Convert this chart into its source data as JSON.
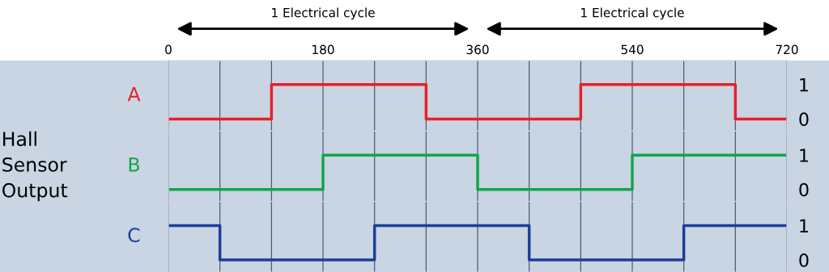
{
  "chart_data": [
    {
      "type": "step",
      "series": [
        {
          "name": "A",
          "color": "#e8202a",
          "x": [
            0,
            120,
            300,
            480,
            660,
            720
          ],
          "values": [
            0,
            1,
            0,
            1,
            0,
            0
          ]
        }
      ],
      "xlim": [
        0,
        720
      ],
      "xticks": [
        0,
        {
          "value": 60,
          "label": null
        },
        {
          "value": 120,
          "label": null
        },
        180,
        {
          "value": 240,
          "label": null
        },
        {
          "value": 300,
          "label": null
        },
        360,
        {
          "value": 420,
          "label": null
        },
        {
          "value": 480,
          "label": null
        },
        540,
        {
          "value": 600,
          "label": null
        },
        {
          "value": 660,
          "label": null
        },
        720
      ],
      "ylim": [
        -0.35,
        1.7
      ],
      "yticks": [
        0,
        1
      ],
      "grid": "x",
      "annotations": [
        "1 Electrical cycle",
        "1 Electrical cycle"
      ]
    },
    {
      "type": "step",
      "series": [
        {
          "name": "B",
          "color": "#12a54a",
          "x": [
            0,
            180,
            360,
            540,
            720
          ],
          "values": [
            0,
            1,
            0,
            1,
            1
          ]
        }
      ],
      "xlim": [
        0,
        720
      ],
      "xticks": [
        0,
        {
          "value": 60,
          "label": null
        },
        {
          "value": 120,
          "label": null
        },
        180,
        {
          "value": 240,
          "label": null
        },
        {
          "value": 300,
          "label": null
        },
        360,
        {
          "value": 420,
          "label": null
        },
        {
          "value": 480,
          "label": null
        },
        540,
        {
          "value": 600,
          "label": null
        },
        {
          "value": 660,
          "label": null
        },
        720
      ],
      "ylim": [
        -0.35,
        1.7
      ],
      "yticks": [
        0,
        1
      ],
      "grid": "x",
      "tick_labels": "y",
      "ylabel": "Hall\nSensor\nOutput"
    },
    {
      "type": "step",
      "series": [
        {
          "name": "C",
          "color": "#1c3f9a",
          "x": [
            0,
            60,
            240,
            420,
            600,
            720
          ],
          "values": [
            1,
            0,
            1,
            0,
            1,
            1
          ]
        }
      ],
      "xlim": [
        0,
        720
      ],
      "xticks": [
        0,
        {
          "value": 60,
          "label": null
        },
        {
          "value": 120,
          "label": null
        },
        180,
        {
          "value": 240,
          "label": null
        },
        {
          "value": 300,
          "label": null
        },
        360,
        {
          "value": 420,
          "label": null
        },
        {
          "value": 480,
          "label": null
        },
        540,
        {
          "value": 600,
          "label": null
        },
        {
          "value": 660,
          "label": null
        },
        720
      ],
      "ylim": [
        -0.35,
        1.7
      ],
      "yticks": [
        0,
        1
      ],
      "grid": "x",
      "tick_labels": "y"
    }
  ]
}
